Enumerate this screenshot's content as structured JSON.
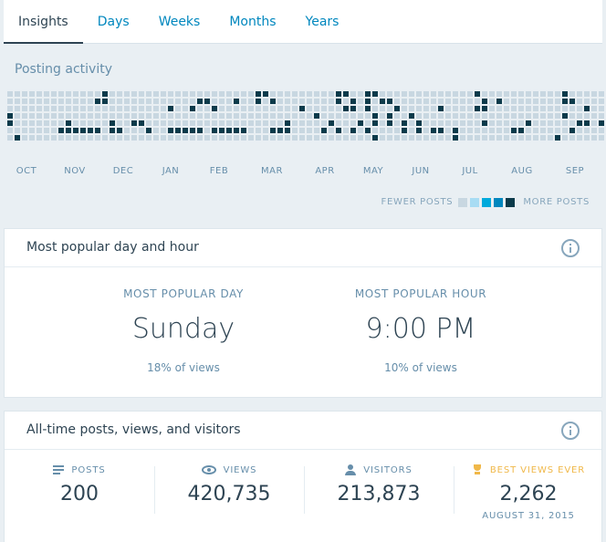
{
  "tabs": [
    {
      "label": "Insights",
      "active": true
    },
    {
      "label": "Days",
      "active": false
    },
    {
      "label": "Weeks",
      "active": false
    },
    {
      "label": "Months",
      "active": false
    },
    {
      "label": "Years",
      "active": false
    }
  ],
  "posting_activity": {
    "title": "Posting activity",
    "months": [
      "OCT",
      "NOV",
      "DEC",
      "JAN",
      "FEB",
      "MAR",
      "APR",
      "MAY",
      "JUN",
      "JUL",
      "AUG",
      "SEP"
    ],
    "legend": {
      "fewer": "FEWER POSTS",
      "more": "MORE POSTS",
      "levels": [
        "#c8d7e1",
        "#a8dcf3",
        "#00aadc",
        "#0087be",
        "#0b3a4a"
      ]
    },
    "level_colors": [
      "#c8d7e1",
      "#0b3a4a"
    ],
    "grid": [
      "00000000000001000000000000000000001100000000011001100000000000001000000000001000000",
      "00000000000011000000000000110001001010000000010101011000000000000101000000001100001",
      "00000000000000000000001001001000000000001000001101000100000100001100000000000001000",
      "10000000000000000000000000000000000000000010000000101001000000000000000000001000000",
      "10000000100000100110000000000000000000100000100010101010100000000100000100000011010",
      "00000001111110110001001111101111100011100001010101000010101101000000011000000100001",
      "01000000000000000000000000000000000000000000000000100000000001000000000000010000000"
    ]
  },
  "popular": {
    "title": "Most popular day and hour",
    "day_label": "MOST POPULAR DAY",
    "day_value": "Sunday",
    "day_pct": "18% of views",
    "hour_label": "MOST POPULAR HOUR",
    "hour_value": "9:00 PM",
    "hour_pct": "10% of views"
  },
  "alltime": {
    "title": "All-time posts, views, and visitors",
    "posts_label": "POSTS",
    "posts_value": "200",
    "views_label": "VIEWS",
    "views_value": "420,735",
    "visitors_label": "VISITORS",
    "visitors_value": "213,873",
    "best_label": "BEST VIEWS EVER",
    "best_value": "2,262",
    "best_date": "AUGUST 31, 2015"
  }
}
